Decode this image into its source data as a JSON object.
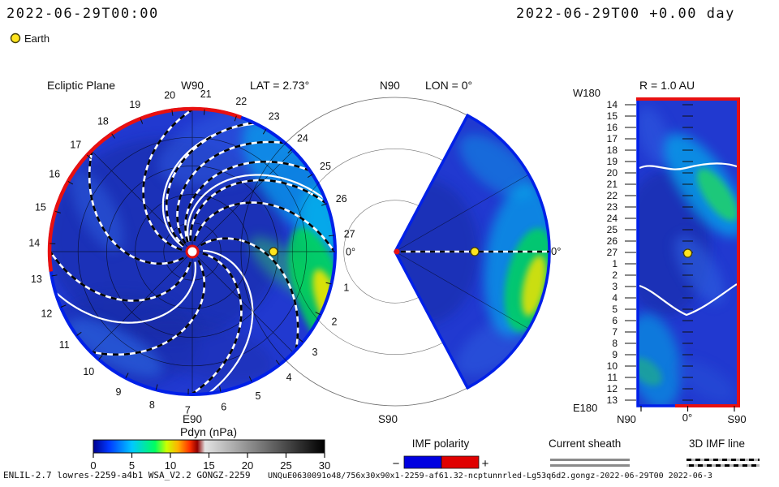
{
  "header": {
    "timestamp_left": "2022-06-29T00:00",
    "timestamp_right": "2022-06-29T00 +0.00 day",
    "earth_legend_label": "Earth"
  },
  "left_panel": {
    "title": "Ecliptic Plane",
    "top_label": "W90",
    "bottom_label": "E90",
    "lat_label": "LAT = 2.73°",
    "ring_labels": [
      "0°",
      "1",
      "2",
      "3",
      "4",
      "5",
      "6",
      "7",
      "8",
      "9",
      "10",
      "11",
      "12",
      "13",
      "14",
      "15",
      "16",
      "17",
      "18",
      "19",
      "20",
      "21",
      "22",
      "23",
      "24",
      "25",
      "26",
      "27"
    ]
  },
  "mid_panel": {
    "top_label": "N90",
    "lon_label": "LON = 0°",
    "bottom_label": "S90",
    "right_label": "0°"
  },
  "right_panel": {
    "title": "R = 1.0 AU",
    "top_left_label": "W180",
    "bottom_left_label": "E180",
    "axis_bottom": [
      "N90",
      "0°",
      "S90"
    ],
    "row_labels": [
      "14",
      "15",
      "16",
      "17",
      "18",
      "19",
      "20",
      "21",
      "22",
      "23",
      "24",
      "25",
      "26",
      "27",
      "1",
      "2",
      "3",
      "4",
      "5",
      "6",
      "7",
      "8",
      "9",
      "10",
      "11",
      "12",
      "13"
    ]
  },
  "colorbar": {
    "title": "Pdyn (nPa)",
    "ticks": [
      0,
      5,
      10,
      15,
      20,
      25,
      30
    ]
  },
  "legends": {
    "imf_polarity": {
      "label": "IMF polarity",
      "minus": "−",
      "plus": "+",
      "neg_color": "#0000e0",
      "pos_color": "#e00000"
    },
    "current_sheath": {
      "label": "Current sheath"
    },
    "imf_line_3d": {
      "label": "3D IMF line"
    }
  },
  "footer": {
    "model_info": "ENLIL-2.7 lowres-2259-a4b1 WSA_V2.2 GONGZ-2259",
    "watermark": "UNQuE0630091o48/756x30x90x1-2259-af61.32-ncptunnrled-Lg53q6d2.gongz-2022-06-29T00  2022-06-3"
  },
  "chart_data": {
    "type": "heatmap",
    "model": "WSA-ENLIL (ENLIL-2.7 lowres-2259-a4b1 WSA_V2.2 GONGZ-2259)",
    "quantity": "Pdyn (nPa)",
    "time_utc": "2022-06-29T00:00",
    "forecast_day_offset": 0.0,
    "earth_lat_deg": 2.73,
    "colorbar": {
      "label": "Pdyn (nPa)",
      "range": [
        0,
        30
      ],
      "stops": [
        [
          0,
          "#000090"
        ],
        [
          2,
          "#0038ff"
        ],
        [
          5,
          "#00c8ff"
        ],
        [
          8,
          "#00ff60"
        ],
        [
          9.5,
          "#ccff00"
        ],
        [
          11,
          "#ffb000"
        ],
        [
          12.5,
          "#ff3000"
        ],
        [
          13.5,
          "#900000"
        ],
        [
          14.5,
          "#e2e2e2"
        ],
        [
          30,
          "#000000"
        ]
      ]
    },
    "panels": [
      {
        "name": "ecliptic-plane",
        "view": "polar",
        "ring_time_axis_days": [
          0,
          27
        ],
        "boundary_polarity": {
          "negative_color": "#0020e8",
          "positive_color": "#e81010",
          "positive_arc_deg_cw_from_east": [
            172,
            290
          ]
        },
        "earth": {
          "angle_deg": 0,
          "radius_frac": 0.57
        },
        "sun": {
          "symbol": "white-disc-red-ring"
        }
      },
      {
        "name": "meridional-plane",
        "view": "polar-wedge",
        "half_angle_deg": 62,
        "labels": {
          "top": "N90",
          "bottom": "S90",
          "right": "0°",
          "title": "LON = 0°"
        },
        "earth": {
          "angle_deg": 0,
          "radius_frac": 0.52
        }
      },
      {
        "name": "radial-surface-map",
        "view": "lat-lon",
        "radius_au": 1.0,
        "x_axis": [
          "N90",
          "0°",
          "S90"
        ],
        "y_axis_top": "W180",
        "y_axis_bottom": "E180",
        "earth": {
          "x_frac": 0.5,
          "y_frac": 0.5
        }
      }
    ],
    "overlays": {
      "imf_spiral_start_angles_deg": [
        10,
        55,
        100,
        145,
        190,
        215,
        230,
        245,
        260,
        280,
        323
      ],
      "imf_spiral_sweep_deg": 80,
      "current_sheet_start_angles_deg": [
        -5,
        75,
        208,
        250
      ],
      "legend_entries": [
        "IMF polarity",
        "Current sheath",
        "3D IMF line"
      ]
    }
  }
}
